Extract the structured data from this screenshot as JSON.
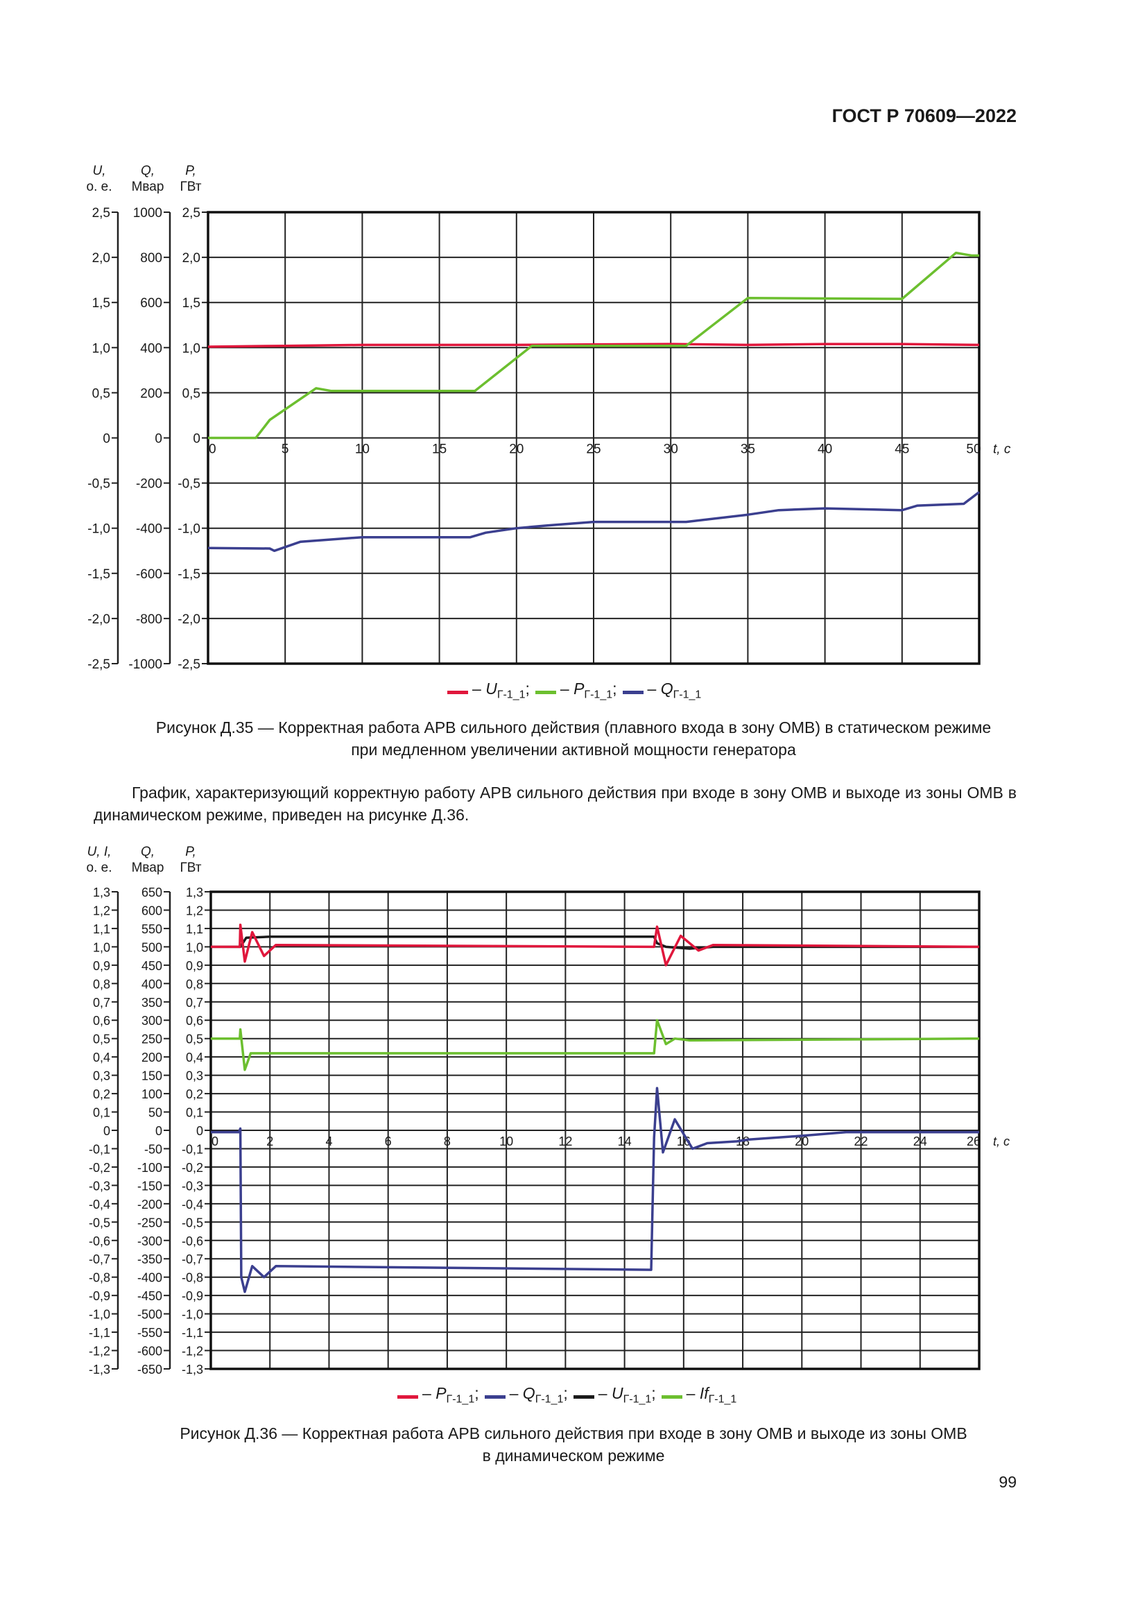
{
  "header": "ГОСТ Р 70609—2022",
  "figure35": {
    "caption_line1": "Рисунок Д.35 — Корректная работа АРВ сильного действия (плавного входа в зону ОМВ) в статическом режиме",
    "caption_line2": "при медленном увеличении активной мощности генератора"
  },
  "paragraph": "График, характеризующий корректную работу АРВ сильного действия при входе в зону ОМВ и выходе из зоны ОМВ в динамическом режиме, приведен на рисунке Д.36.",
  "figure36": {
    "caption_line1": "Рисунок Д.36 — Корректная работа АРВ сильного действия при входе в зону ОМВ и выходе из зоны ОМВ",
    "caption_line2": "в динамическом режиме"
  },
  "page_number": "99",
  "chart_data": [
    {
      "type": "line",
      "axis_headers": [
        [
          "U,",
          "о. е."
        ],
        [
          "Q,",
          "Мвар"
        ],
        [
          "P,",
          "ГВт"
        ]
      ],
      "xlabel": "t, с",
      "xlim": [
        0,
        50
      ],
      "x_ticks": [
        "0",
        "5",
        "10",
        "15",
        "20",
        "25",
        "30",
        "35",
        "40",
        "45",
        "50"
      ],
      "ylim": [
        -2.5,
        2.5
      ],
      "y_ticks_U": [
        "2,5",
        "2,0",
        "1,5",
        "1,0",
        "0,5",
        "0",
        "-0,5",
        "-1,0",
        "-1,5",
        "-2,0",
        "-2,5"
      ],
      "y_ticks_Q": [
        "1000",
        "800",
        "600",
        "400",
        "200",
        "0",
        "-200",
        "-400",
        "-600",
        "-800",
        "-1000"
      ],
      "y_ticks_P": [
        "2,5",
        "2,0",
        "1,5",
        "1,0",
        "0,5",
        "0",
        "-0,5",
        "-1,0",
        "-1,5",
        "-2,0",
        "-2,5"
      ],
      "grid": true,
      "legend_position": "bottom",
      "series": [
        {
          "name": "U",
          "sub": "Г-1_1",
          "color": "#e0173c",
          "axis": "U",
          "x": [
            0,
            5,
            10,
            20,
            30,
            35,
            40,
            45,
            50
          ],
          "y": [
            1.01,
            1.02,
            1.03,
            1.03,
            1.04,
            1.03,
            1.04,
            1.04,
            1.03
          ]
        },
        {
          "name": "P",
          "sub": "Г-1_1",
          "color": "#6cbf2f",
          "axis": "P",
          "x": [
            0,
            3.1,
            4,
            7,
            8,
            17.3,
            21,
            31,
            35,
            45,
            48.5,
            49.5,
            50
          ],
          "y": [
            0,
            0,
            0.2,
            0.55,
            0.52,
            0.52,
            1.02,
            1.02,
            1.55,
            1.54,
            2.05,
            2.02,
            2.02
          ]
        },
        {
          "name": "Q",
          "sub": "Г-1_1",
          "color": "#3b3f8f",
          "axis": "Q",
          "x": [
            0,
            4,
            4.3,
            6,
            10,
            17,
            18,
            20,
            22,
            25,
            31,
            35,
            37,
            40,
            45,
            46,
            49,
            50
          ],
          "y": [
            -488,
            -490,
            -500,
            -460,
            -440,
            -440,
            -420,
            -400,
            -388,
            -372,
            -372,
            -340,
            -320,
            -312,
            -320,
            -300,
            -292,
            -240
          ]
        }
      ]
    },
    {
      "type": "line",
      "axis_headers": [
        [
          "U, I,",
          "о. е."
        ],
        [
          "Q,",
          "Мвар"
        ],
        [
          "P,",
          "ГВт"
        ]
      ],
      "xlabel": "t, с",
      "xlim": [
        0,
        26
      ],
      "x_ticks": [
        "0",
        "2",
        "4",
        "6",
        "8",
        "10",
        "12",
        "14",
        "16",
        "18",
        "20",
        "22",
        "24",
        "26"
      ],
      "ylim": [
        -1.3,
        1.3
      ],
      "y_ticks_U": [
        "1,3",
        "1,2",
        "1,1",
        "1,0",
        "0,9",
        "0,8",
        "0,7",
        "0,6",
        "0,5",
        "0,4",
        "0,3",
        "0,2",
        "0,1",
        "0",
        "-0,1",
        "-0,2",
        "-0,3",
        "-0,4",
        "-0,5",
        "-0,6",
        "-0,7",
        "-0,8",
        "-0,9",
        "-1,0",
        "-1,1",
        "-1,2",
        "-1,3"
      ],
      "y_ticks_Q": [
        "650",
        "600",
        "550",
        "500",
        "450",
        "400",
        "350",
        "300",
        "250",
        "200",
        "150",
        "100",
        "50",
        "0",
        "-50",
        "-100",
        "-150",
        "-200",
        "-250",
        "-300",
        "-350",
        "-400",
        "-450",
        "-500",
        "-550",
        "-600",
        "-650"
      ],
      "y_ticks_P": [
        "1,3",
        "1,2",
        "1,1",
        "1,0",
        "0,9",
        "0,8",
        "0,7",
        "0,6",
        "0,5",
        "0,4",
        "0,3",
        "0,2",
        "0,1",
        "0",
        "-0,1",
        "-0,2",
        "-0,3",
        "-0,4",
        "-0,5",
        "-0,6",
        "-0,7",
        "-0,8",
        "-0,9",
        "-1,0",
        "-1,1",
        "-1,2",
        "-1,3"
      ],
      "grid": true,
      "legend_position": "bottom",
      "series": [
        {
          "name": "U",
          "sub": "Г-1_1",
          "color": "#1a1a1a",
          "axis": "U",
          "x": [
            0,
            1.0,
            1.2,
            2,
            15,
            15.1,
            15.4,
            16.2,
            17,
            26
          ],
          "y": [
            1.0,
            1.0,
            1.05,
            1.055,
            1.055,
            1.02,
            1.0,
            0.99,
            1.0,
            1.0
          ]
        },
        {
          "name": "P",
          "sub": "Г-1_1",
          "color": "#e0173c",
          "axis": "P",
          "x": [
            0,
            0.98,
            1.0,
            1.15,
            1.4,
            1.8,
            2.2,
            15,
            15.1,
            15.4,
            15.9,
            16.5,
            17,
            26
          ],
          "y": [
            1.0,
            1.0,
            1.12,
            0.92,
            1.08,
            0.95,
            1.01,
            1.0,
            1.11,
            0.9,
            1.06,
            0.98,
            1.01,
            1.0
          ]
        },
        {
          "name": "If",
          "sub": "Г-1_1",
          "color": "#6cbf2f",
          "axis": "U",
          "x": [
            0,
            0.98,
            1.0,
            1.15,
            1.35,
            15,
            15.1,
            15.4,
            15.7,
            16.2,
            26
          ],
          "y": [
            0.5,
            0.5,
            0.55,
            0.33,
            0.42,
            0.42,
            0.6,
            0.47,
            0.5,
            0.49,
            0.5
          ]
        },
        {
          "name": "Q",
          "sub": "Г-1_1",
          "color": "#3b3f8f",
          "axis": "Q",
          "x": [
            0,
            0.95,
            1.0,
            1.03,
            1.15,
            1.4,
            1.8,
            2.2,
            14.9,
            15.0,
            15.1,
            15.3,
            15.7,
            16.0,
            16.3,
            16.8,
            17.8,
            18.2,
            20,
            21.5,
            26
          ],
          "y": [
            -5,
            -5,
            5,
            -400,
            -440,
            -370,
            -400,
            -370,
            -380,
            -20,
            115,
            -60,
            30,
            -10,
            -50,
            -35,
            -30,
            -25,
            -15,
            -5,
            -5
          ]
        }
      ]
    }
  ]
}
